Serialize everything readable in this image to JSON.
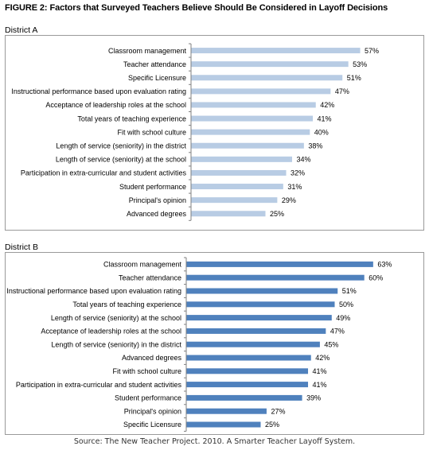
{
  "figure": {
    "title": "FIGURE 2: Factors that Surveyed Teachers Believe Should Be Considered in Layoff Decisions",
    "source": "Source: The New Teacher Project. 2010. A Smarter Teacher Layoff System."
  },
  "colors": {
    "district_a_bar": "#b8cce4",
    "district_b_bar": "#4f81bd",
    "axis": "#808080",
    "border": "#9a9a9a"
  },
  "chart_data": [
    {
      "type": "bar",
      "orientation": "horizontal",
      "title": "District A",
      "xlabel": "",
      "ylabel": "",
      "xlim": [
        0,
        100
      ],
      "grid": false,
      "categories": [
        "Classroom management",
        "Teacher attendance",
        "Specific Licensure",
        "Instructional performance based upon evaluation rating",
        "Acceptance of leadership roles at the school",
        "Total years of teaching experience",
        "Fit with school culture",
        "Length of service (seniority) in the district",
        "Length of service (seniority) at the school",
        "Participation in extra-curricular and student activities",
        "Student performance",
        "Principal's opinion",
        "Advanced degrees"
      ],
      "values": [
        57,
        53,
        51,
        47,
        42,
        41,
        40,
        38,
        34,
        32,
        31,
        29,
        25
      ],
      "value_labels": [
        "57%",
        "53%",
        "51%",
        "47%",
        "42%",
        "41%",
        "40%",
        "38%",
        "34%",
        "32%",
        "31%",
        "29%",
        "25%"
      ]
    },
    {
      "type": "bar",
      "orientation": "horizontal",
      "title": "District B",
      "xlabel": "",
      "ylabel": "",
      "xlim": [
        0,
        100
      ],
      "grid": false,
      "categories": [
        "Classroom management",
        "Teacher attendance",
        "Instructional performance based upon evaluation rating",
        "Total years of teaching experience",
        "Length of service (seniority) at the school",
        "Acceptance of leadership roles at the school",
        "Length of service (seniority) in the district",
        "Advanced degrees",
        "Fit with school culture",
        "Participation in extra-curricular and student activities",
        "Student performance",
        "Principal's opinion",
        "Specific Licensure"
      ],
      "values": [
        63,
        60,
        51,
        50,
        49,
        47,
        45,
        42,
        41,
        41,
        39,
        27,
        25
      ],
      "value_labels": [
        "63%",
        "60%",
        "51%",
        "50%",
        "49%",
        "47%",
        "45%",
        "42%",
        "41%",
        "41%",
        "39%",
        "27%",
        "25%"
      ]
    }
  ]
}
